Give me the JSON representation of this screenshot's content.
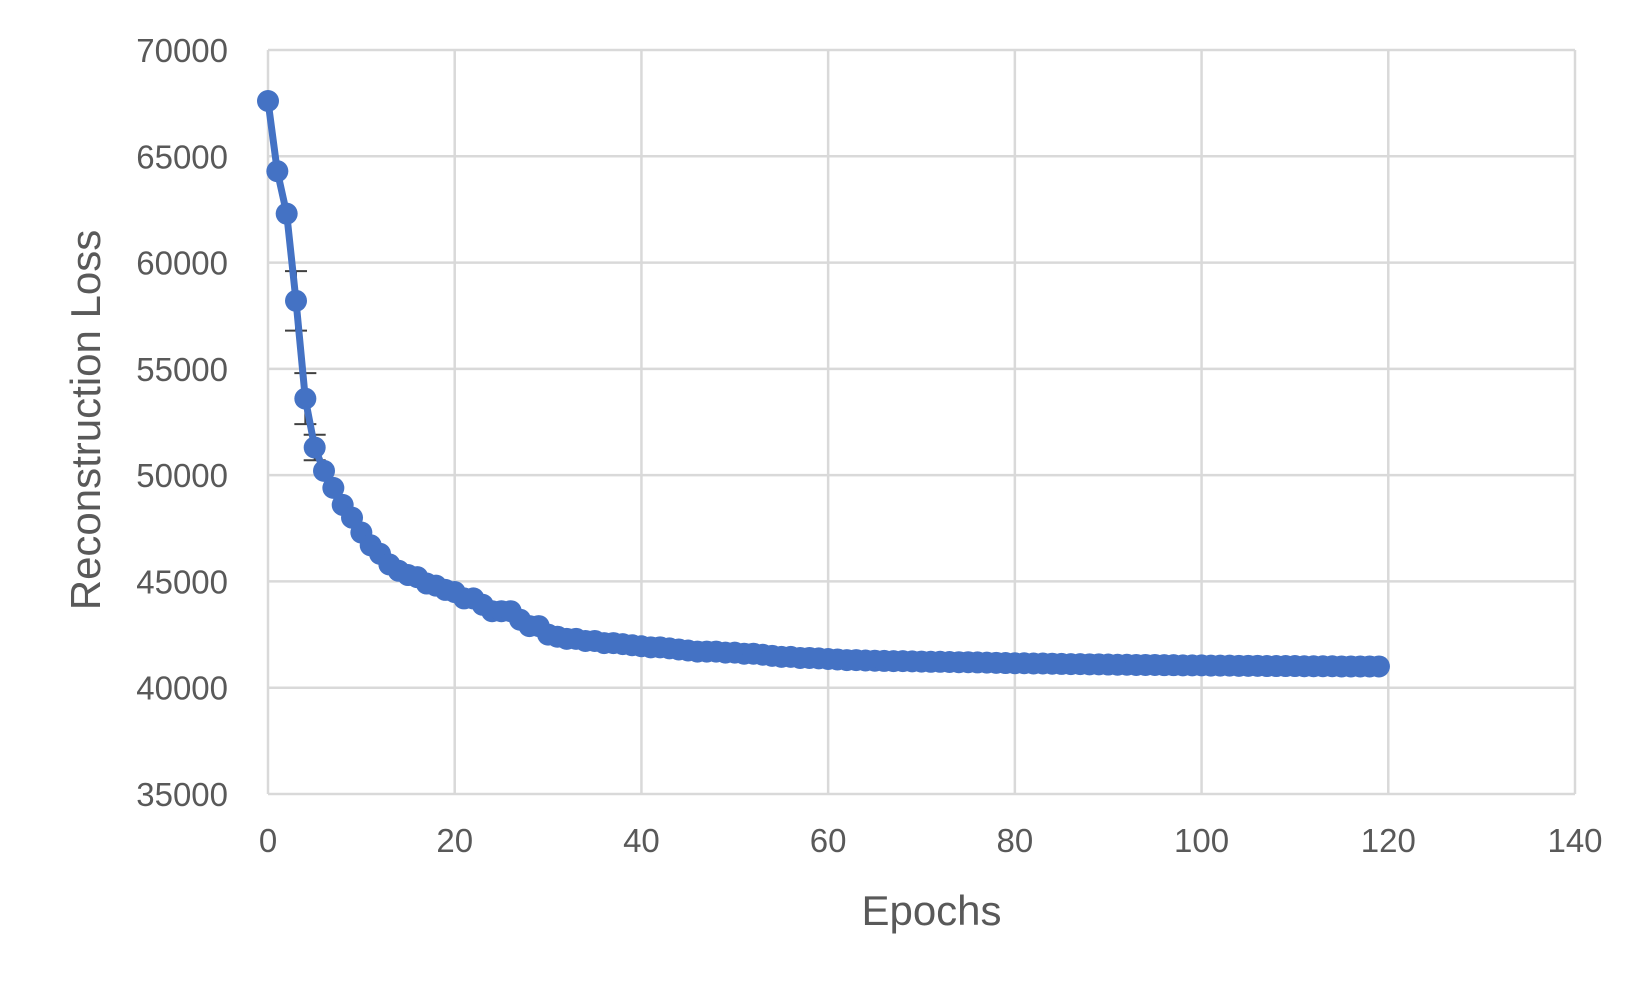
{
  "chart_data": {
    "type": "line",
    "title": "",
    "xlabel": "Epochs",
    "ylabel": "Reconstruction Loss",
    "xlim": [
      0,
      140
    ],
    "ylim": [
      35000,
      70000
    ],
    "xticks": [
      0,
      20,
      40,
      60,
      80,
      100,
      120,
      140
    ],
    "yticks": [
      35000,
      40000,
      45000,
      50000,
      55000,
      60000,
      65000,
      70000
    ],
    "xtick_labels": [
      "0",
      "20",
      "40",
      "60",
      "80",
      "100",
      "120",
      "140"
    ],
    "ytick_labels": [
      "35000",
      "40000",
      "45000",
      "50000",
      "55000",
      "60000",
      "65000",
      "70000"
    ],
    "grid": true,
    "legend": "none",
    "series": [
      {
        "color": "#4472c4",
        "x": [
          0,
          1,
          2,
          3,
          4,
          5,
          6,
          7,
          8,
          9,
          10,
          11,
          12,
          13,
          14,
          15,
          16,
          17,
          18,
          19,
          20,
          21,
          22,
          23,
          24,
          25,
          26,
          27,
          28,
          29,
          30,
          31,
          32,
          33,
          34,
          35,
          36,
          37,
          38,
          39,
          40,
          41,
          42,
          43,
          44,
          45,
          46,
          47,
          48,
          49,
          50,
          51,
          52,
          53,
          54,
          55,
          56,
          57,
          58,
          59,
          60,
          61,
          62,
          63,
          64,
          65,
          66,
          67,
          68,
          69,
          70,
          71,
          72,
          73,
          74,
          75,
          76,
          77,
          78,
          79,
          80,
          81,
          82,
          83,
          84,
          85,
          86,
          87,
          88,
          89,
          90,
          91,
          92,
          93,
          94,
          95,
          96,
          97,
          98,
          99,
          100,
          101,
          102,
          103,
          104,
          105,
          106,
          107,
          108,
          109,
          110,
          111,
          112,
          113,
          114,
          115,
          116,
          117,
          118,
          119
        ],
        "y": [
          67600,
          64300,
          62300,
          58200,
          53600,
          51300,
          50200,
          49400,
          48600,
          48000,
          47300,
          46700,
          46300,
          45800,
          45500,
          45300,
          45200,
          44900,
          44800,
          44600,
          44500,
          44200,
          44200,
          43900,
          43600,
          43600,
          43600,
          43200,
          42900,
          42900,
          42500,
          42400,
          42300,
          42300,
          42200,
          42200,
          42100,
          42100,
          42050,
          42000,
          41950,
          41900,
          41900,
          41850,
          41800,
          41750,
          41700,
          41700,
          41700,
          41650,
          41650,
          41600,
          41600,
          41550,
          41500,
          41450,
          41450,
          41400,
          41400,
          41380,
          41350,
          41330,
          41300,
          41300,
          41280,
          41270,
          41260,
          41250,
          41250,
          41240,
          41230,
          41220,
          41220,
          41210,
          41200,
          41200,
          41190,
          41180,
          41170,
          41160,
          41150,
          41150,
          41140,
          41140,
          41130,
          41120,
          41110,
          41110,
          41100,
          41100,
          41090,
          41080,
          41080,
          41070,
          41070,
          41070,
          41060,
          41060,
          41050,
          41050,
          41050,
          41040,
          41040,
          41040,
          41030,
          41030,
          41030,
          41020,
          41020,
          41020,
          41020,
          41010,
          41010,
          41010,
          41010,
          41000,
          41000,
          41000,
          41000,
          41000
        ],
        "error_bars": [
          {
            "x": 3,
            "minus": 1400,
            "plus": 1400
          },
          {
            "x": 4,
            "minus": 1200,
            "plus": 1200
          },
          {
            "x": 5,
            "minus": 600,
            "plus": 600
          }
        ]
      }
    ]
  }
}
